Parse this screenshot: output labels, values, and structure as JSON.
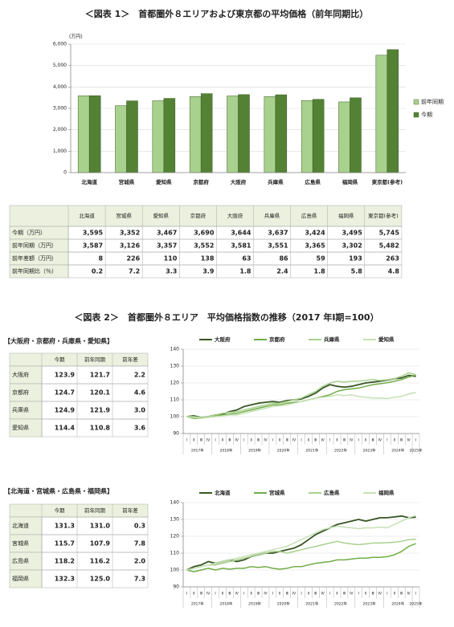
{
  "chart_data": [
    {
      "type": "bar",
      "title": "＜図表 1＞　首都圏外８エリアおよび東京都の平均価格（前年同期比）",
      "ylabel": "(万円)",
      "categories": [
        "北海道",
        "宮城県",
        "愛知県",
        "京都府",
        "大阪府",
        "兵庫県",
        "広島県",
        "福岡県",
        "東京都(参考)"
      ],
      "series": [
        {
          "name": "前年同期",
          "color": "#a9d18e",
          "values": [
            3587,
            3126,
            3357,
            3552,
            3581,
            3551,
            3365,
            3302,
            5482
          ]
        },
        {
          "name": "今期",
          "color": "#548235",
          "values": [
            3595,
            3352,
            3467,
            3690,
            3644,
            3637,
            3424,
            3495,
            5745
          ]
        }
      ],
      "ylim": [
        0,
        6000
      ],
      "yticks": [
        0,
        {
          "value": 1000,
          "label": "1,000"
        },
        {
          "value": 2000,
          "label": "2,000"
        },
        {
          "value": 3000,
          "label": "3,000"
        },
        {
          "value": 4000,
          "label": "4,000"
        },
        {
          "value": 5000,
          "label": "5,000"
        },
        {
          "value": 6000,
          "label": "6,000"
        }
      ],
      "grid": true,
      "legend": "right"
    },
    {
      "type": "line",
      "categories": [
        "Ⅰ",
        "Ⅱ",
        "Ⅲ",
        "Ⅳ",
        "Ⅰ",
        "Ⅱ",
        "Ⅲ",
        "Ⅳ",
        "Ⅰ",
        "Ⅱ",
        "Ⅲ",
        "Ⅳ",
        "Ⅰ",
        "Ⅱ",
        "Ⅲ",
        "Ⅳ",
        "Ⅰ",
        "Ⅱ",
        "Ⅲ",
        "Ⅳ",
        "Ⅰ",
        "Ⅱ",
        "Ⅲ",
        "Ⅳ",
        "Ⅰ",
        "Ⅱ",
        "Ⅲ",
        "Ⅳ",
        "Ⅰ",
        "Ⅱ",
        "Ⅲ",
        "Ⅳ",
        "Ⅰ"
      ],
      "year_labels": [
        "2017年",
        "2018年",
        "2019年",
        "2020年",
        "2021年",
        "2022年",
        "2023年",
        "2024年",
        "2025年"
      ],
      "series": [
        {
          "name": "大阪府",
          "color": "#375623",
          "values": [
            100,
            100.5,
            99.5,
            100,
            101,
            101.5,
            103,
            104,
            106,
            107,
            108,
            108.5,
            109,
            108.5,
            109.5,
            110,
            110.5,
            112,
            114,
            117,
            119,
            118,
            117.5,
            118,
            119,
            120,
            120.5,
            121,
            121.7,
            122.5,
            123,
            124.5,
            123.9
          ]
        },
        {
          "name": "京都府",
          "color": "#70ad47",
          "values": [
            100,
            99,
            99,
            100,
            100.5,
            101,
            101.5,
            102,
            103,
            104,
            105,
            106,
            107,
            107,
            108,
            108.5,
            109,
            110,
            111,
            112,
            113,
            115,
            116,
            116.5,
            117,
            118,
            119,
            119.5,
            120.1,
            121,
            122,
            123.5,
            124.7
          ]
        },
        {
          "name": "兵庫県",
          "color": "#a9d18e",
          "values": [
            100,
            100,
            99.5,
            100,
            101,
            102,
            102.5,
            103,
            104,
            105,
            106,
            107,
            108,
            108,
            109,
            110,
            111,
            113,
            115,
            118,
            120,
            121,
            120.5,
            121,
            121,
            121.5,
            122,
            121.5,
            121.9,
            122.5,
            124,
            126,
            124.9
          ]
        },
        {
          "name": "愛知県",
          "color": "#c5e0b4",
          "values": [
            100,
            99.5,
            99,
            99.5,
            100,
            100.5,
            101,
            101,
            102,
            103,
            104,
            105,
            106,
            106.5,
            107,
            108,
            109,
            110,
            111,
            111.5,
            112,
            113,
            112.5,
            113,
            112,
            111.5,
            111,
            111,
            110.8,
            111.5,
            112,
            113.5,
            114.4
          ]
        }
      ],
      "ylim": [
        90,
        140
      ],
      "yticks": [
        90,
        100,
        110,
        120,
        130,
        140
      ],
      "grid": true,
      "legend": "top"
    },
    {
      "type": "line",
      "categories": [
        "Ⅰ",
        "Ⅱ",
        "Ⅲ",
        "Ⅳ",
        "Ⅰ",
        "Ⅱ",
        "Ⅲ",
        "Ⅳ",
        "Ⅰ",
        "Ⅱ",
        "Ⅲ",
        "Ⅳ",
        "Ⅰ",
        "Ⅱ",
        "Ⅲ",
        "Ⅳ",
        "Ⅰ",
        "Ⅱ",
        "Ⅲ",
        "Ⅳ",
        "Ⅰ",
        "Ⅱ",
        "Ⅲ",
        "Ⅳ",
        "Ⅰ",
        "Ⅱ",
        "Ⅲ",
        "Ⅳ",
        "Ⅰ",
        "Ⅱ",
        "Ⅲ",
        "Ⅳ",
        "Ⅰ"
      ],
      "year_labels": [
        "2017年",
        "2018年",
        "2019年",
        "2020年",
        "2021年",
        "2022年",
        "2023年",
        "2024年",
        "2025年"
      ],
      "series": [
        {
          "name": "北海道",
          "color": "#375623",
          "values": [
            100,
            102,
            103,
            105,
            104,
            105,
            106,
            105,
            106,
            108,
            109,
            110,
            110,
            111,
            112,
            113,
            115,
            118,
            121,
            123,
            125,
            127,
            128,
            129,
            130,
            129,
            130,
            131,
            131.0,
            131.5,
            132,
            131,
            131.3
          ]
        },
        {
          "name": "宮城県",
          "color": "#70ad47",
          "values": [
            100,
            99,
            100,
            101,
            100,
            101,
            100.5,
            101,
            101,
            102,
            101.5,
            102,
            101,
            100.5,
            101,
            102,
            102,
            103,
            104,
            104.5,
            105,
            106,
            106,
            106.5,
            107,
            107,
            107.5,
            107.5,
            107.9,
            109,
            111,
            114,
            115.7
          ]
        },
        {
          "name": "広島県",
          "color": "#a9d18e",
          "values": [
            100,
            101,
            102,
            103,
            103,
            104,
            105,
            106,
            107,
            108,
            109,
            110,
            111,
            111,
            110,
            111,
            112,
            113,
            114,
            115,
            116,
            117,
            116,
            115.5,
            115,
            115.5,
            116,
            116,
            116.2,
            116.5,
            117,
            118,
            118.2
          ]
        },
        {
          "name": "福岡県",
          "color": "#c5e0b4",
          "values": [
            100,
            101,
            102,
            103,
            104,
            105,
            106,
            107,
            108,
            109,
            110,
            111,
            112,
            113,
            114,
            116,
            118,
            120,
            122,
            124,
            125,
            126,
            125.5,
            125,
            124.5,
            125,
            125,
            125.5,
            125.0,
            127,
            129,
            131,
            132.3
          ]
        }
      ],
      "ylim": [
        90,
        140
      ],
      "yticks": [
        90,
        100,
        110,
        120,
        130,
        140
      ],
      "grid": true,
      "legend": "top"
    }
  ],
  "figure2_title": "＜図表 2＞　首都圏外８エリア　平均価格指数の推移（2017 年Ⅰ期=100）",
  "tables": [
    {
      "header": [
        "北海道",
        "宮城県",
        "愛知県",
        "京都府",
        "大阪府",
        "兵庫県",
        "広島県",
        "福岡県",
        "東京都(参考)"
      ],
      "rows": [
        {
          "label": "今期（万円）",
          "cells": [
            "3,595",
            "3,352",
            "3,467",
            "3,690",
            "3,644",
            "3,637",
            "3,424",
            "3,495",
            "5,745"
          ]
        },
        {
          "label": "前年同期（万円）",
          "cells": [
            "3,587",
            "3,126",
            "3,357",
            "3,552",
            "3,581",
            "3,551",
            "3,365",
            "3,302",
            "5,482"
          ]
        },
        {
          "label": "前年差額（万円）",
          "cells": [
            "8",
            "226",
            "110",
            "138",
            "63",
            "86",
            "59",
            "193",
            "263"
          ]
        },
        {
          "label": "前年同期比（％）",
          "cells": [
            "0.2",
            "7.2",
            "3.3",
            "3.9",
            "1.8",
            "2.4",
            "1.8",
            "5.8",
            "4.8"
          ]
        }
      ]
    },
    {
      "heading": "【大阪府・京都府・兵庫県・愛知県】",
      "header": [
        "今期",
        "前年同期",
        "前年差"
      ],
      "rows": [
        {
          "label": "大阪府",
          "cells": [
            "123.9",
            "121.7",
            "2.2"
          ]
        },
        {
          "label": "京都府",
          "cells": [
            "124.7",
            "120.1",
            "4.6"
          ]
        },
        {
          "label": "兵庫県",
          "cells": [
            "124.9",
            "121.9",
            "3.0"
          ]
        },
        {
          "label": "愛知県",
          "cells": [
            "114.4",
            "110.8",
            "3.6"
          ]
        }
      ]
    },
    {
      "heading": "【北海道・宮城県・広島県・福岡県】",
      "header": [
        "今期",
        "前年同期",
        "前年差"
      ],
      "rows": [
        {
          "label": "北海道",
          "cells": [
            "131.3",
            "131.0",
            "0.3"
          ]
        },
        {
          "label": "宮城県",
          "cells": [
            "115.7",
            "107.9",
            "7.8"
          ]
        },
        {
          "label": "広島県",
          "cells": [
            "118.2",
            "116.2",
            "2.0"
          ]
        },
        {
          "label": "福岡県",
          "cells": [
            "132.3",
            "125.0",
            "7.3"
          ]
        }
      ]
    }
  ]
}
